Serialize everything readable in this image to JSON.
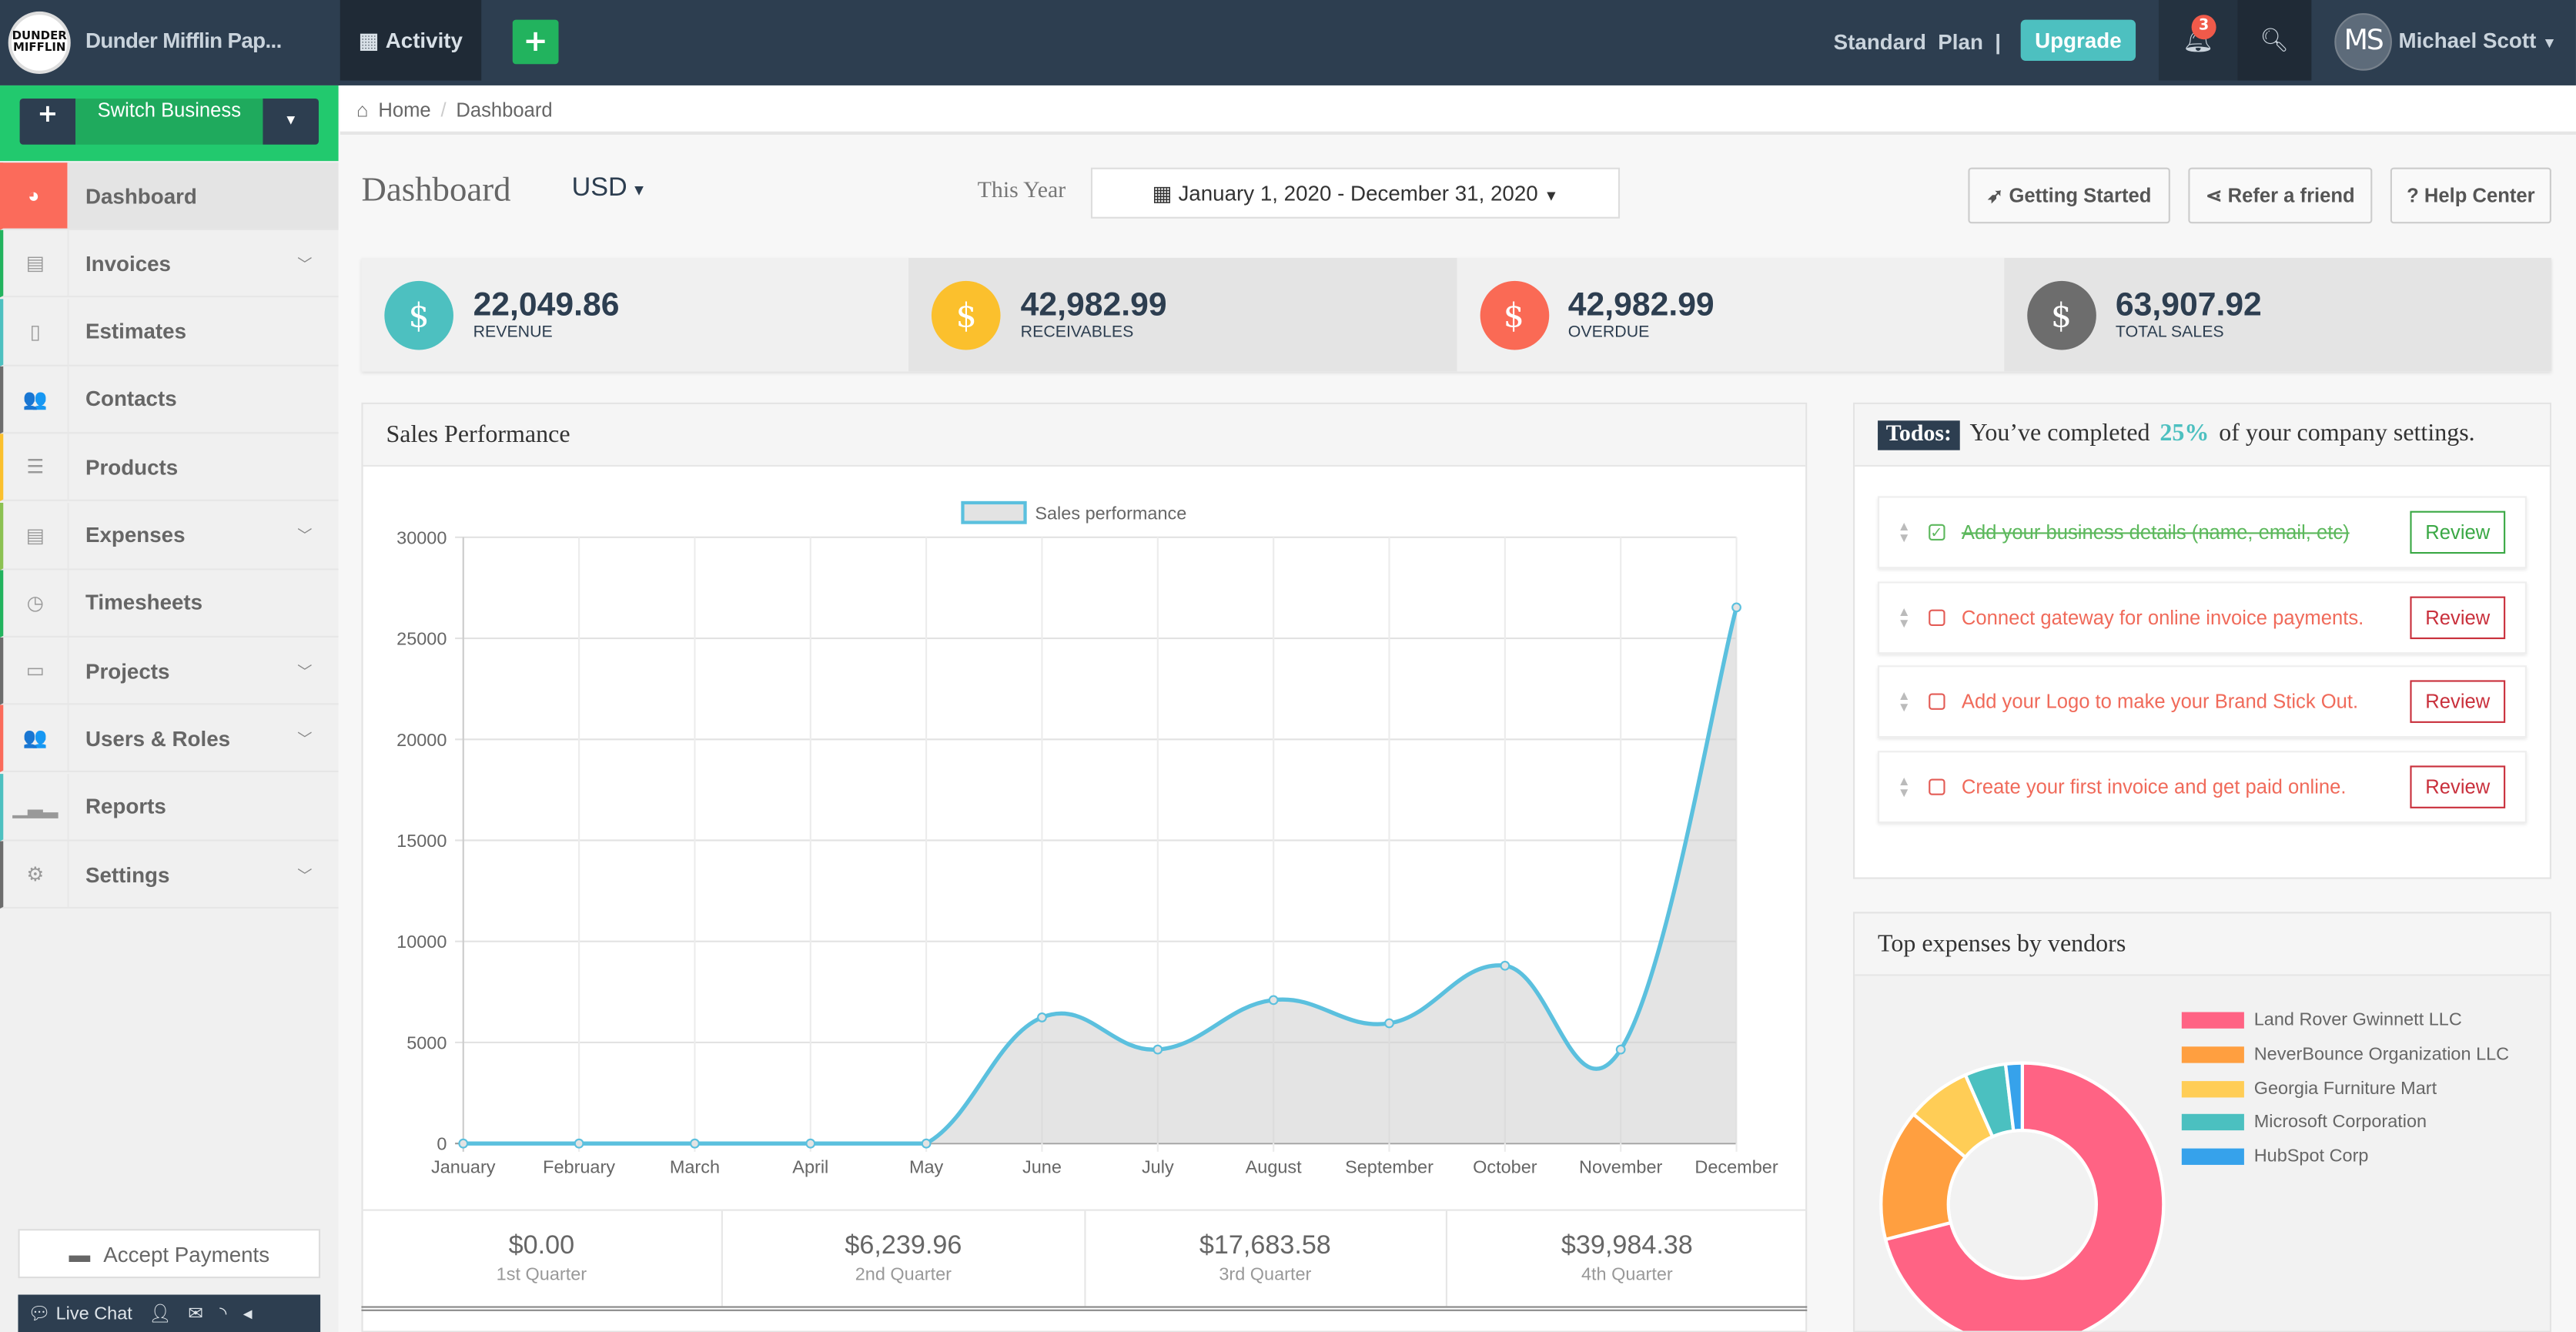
{
  "topbar": {
    "logo_text": "DUNDER MIFFLIN",
    "brand": "Dunder Mifflin Pap...",
    "activity": "Activity",
    "add": "+",
    "plan": "Standard  Plan  |",
    "upgrade": "Upgrade",
    "notifications": "3",
    "avatar": "MS",
    "user": "Michael Scott"
  },
  "sidebar": {
    "switch_plus": "+",
    "switch_label": "Switch Business",
    "switch_caret": "▾",
    "items": [
      {
        "label": "Dashboard",
        "icon": "dashboard-icon",
        "glyph": "◕",
        "active": true,
        "chevron": false,
        "stripe": "#fb6b5b"
      },
      {
        "label": "Invoices",
        "icon": "file-text-icon",
        "glyph": "▤",
        "chevron": true,
        "stripe": "#22b35e"
      },
      {
        "label": "Estimates",
        "icon": "file-icon",
        "glyph": "▯",
        "chevron": false,
        "stripe": "#4dc0c0"
      },
      {
        "label": "Contacts",
        "icon": "users-icon",
        "glyph": "👥",
        "chevron": false,
        "stripe": "#6d6d6d"
      },
      {
        "label": "Products",
        "icon": "list-icon",
        "glyph": "☰",
        "chevron": false,
        "stripe": "#fbc02d"
      },
      {
        "label": "Expenses",
        "icon": "file-text-icon",
        "glyph": "▤",
        "chevron": true,
        "stripe": "#8cc152"
      },
      {
        "label": "Timesheets",
        "icon": "clock-icon",
        "glyph": "◷",
        "chevron": false,
        "stripe": "#22b35e"
      },
      {
        "label": "Projects",
        "icon": "tasks-icon",
        "glyph": "▭",
        "chevron": true,
        "stripe": "#6d6d6d"
      },
      {
        "label": "Users & Roles",
        "icon": "users-icon",
        "glyph": "👥",
        "chevron": true,
        "stripe": "#fb6b5b"
      },
      {
        "label": "Reports",
        "icon": "bar-chart-icon",
        "glyph": "▁▃▂",
        "chevron": false,
        "stripe": "#4dc0c0"
      },
      {
        "label": "Settings",
        "icon": "gear-icon",
        "glyph": "⚙",
        "chevron": true,
        "stripe": "#6d6d6d"
      }
    ],
    "accept_payments": "Accept Payments",
    "live_chat": "Live Chat"
  },
  "breadcrumb": {
    "home": "Home",
    "sep": "/",
    "current": "Dashboard"
  },
  "header": {
    "title": "Dashboard",
    "currency": "USD",
    "range_label": "This Year",
    "date_range": "January 1, 2020 - December 31, 2020",
    "getting_started": "Getting Started",
    "refer": "Refer a friend",
    "help": "? Help Center"
  },
  "stats": [
    {
      "value": "22,049.86",
      "label": "REVENUE",
      "color": "#4dc0c0",
      "bg": "#f0f0f0"
    },
    {
      "value": "42,982.99",
      "label": "RECEIVABLES",
      "color": "#fbc02d",
      "bg": "#e4e4e4"
    },
    {
      "value": "42,982.99",
      "label": "OVERDUE",
      "color": "#fa6a55",
      "bg": "#f0f0f0"
    },
    {
      "value": "63,907.92",
      "label": "TOTAL SALES",
      "color": "#6d6d6d",
      "bg": "#e4e4e4"
    }
  ],
  "sales": {
    "title": "Sales Performance",
    "quarters": [
      {
        "value": "$0.00",
        "label": "1st Quarter"
      },
      {
        "value": "$6,239.96",
        "label": "2nd Quarter"
      },
      {
        "value": "$17,683.58",
        "label": "3rd Quarter"
      },
      {
        "value": "$39,984.38",
        "label": "4th Quarter"
      }
    ]
  },
  "todos": {
    "tag": "Todos:",
    "text_before": "You’ve completed",
    "percent": "25%",
    "text_after": "of your company settings.",
    "review": "Review",
    "items": [
      {
        "text": "Add your business details (name, email, etc)",
        "done": true
      },
      {
        "text": "Connect gateway for online invoice payments.",
        "done": false
      },
      {
        "text": "Add your Logo to make your Brand Stick Out.",
        "done": false
      },
      {
        "text": "Create your first invoice and get paid online.",
        "done": false
      }
    ]
  },
  "expenses": {
    "title": "Top expenses by vendors"
  },
  "chart_data": [
    {
      "type": "area",
      "series": [
        {
          "name": "Sales performance",
          "color": "#5bc0de",
          "values": [
            0,
            0,
            0,
            0,
            0,
            6240,
            4650,
            7100,
            5950,
            8800,
            4650,
            26530
          ]
        }
      ],
      "categories": [
        "January",
        "February",
        "March",
        "April",
        "May",
        "June",
        "July",
        "August",
        "September",
        "October",
        "November",
        "December"
      ],
      "ylim": [
        0,
        30000
      ],
      "yticks": [
        0,
        5000,
        10000,
        15000,
        20000,
        25000,
        30000
      ],
      "grid": true,
      "legend": "top"
    },
    {
      "type": "pie",
      "donut": true,
      "categories": [
        "Land Rover Gwinnett LLC",
        "NeverBounce Organization LLC",
        "Georgia Furniture Mart",
        "Microsoft Corporation",
        "HubSpot Corp"
      ],
      "values": [
        71,
        15,
        7.4,
        4.7,
        1.9
      ],
      "colors": [
        "#ff6384",
        "#ff9f40",
        "#ffcd56",
        "#4bc0c0",
        "#36a2eb"
      ],
      "legend": "right"
    }
  ]
}
